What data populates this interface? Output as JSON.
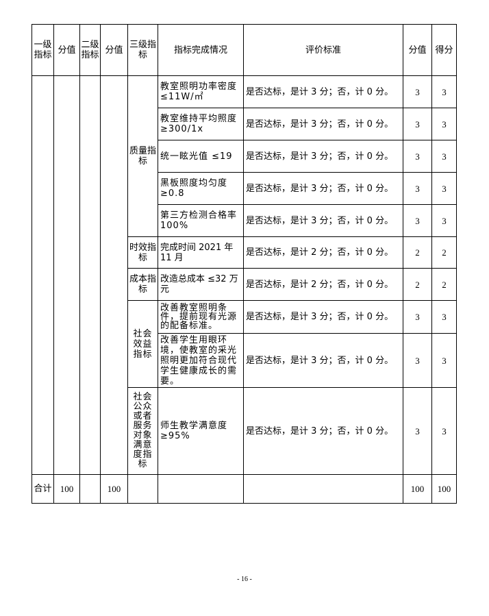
{
  "header": [
    "一级指标",
    "分值",
    "二级指标",
    "分值",
    "三级指标",
    "指标完成情况",
    "评价标准",
    "分值",
    "得分"
  ],
  "groups": [
    "质量指标",
    "时效指标",
    "成本指标",
    "社会效益指标",
    "社会公众或者服务对象满意度指标"
  ],
  "rows": [
    {
      "item": "教室照明功率密度 ≤11W/㎡",
      "criteria": "是否达标，是计 3 分；否，计 0 分。",
      "score": "3",
      "got": "3"
    },
    {
      "item": "教室维持平均照度 ≥300/1x",
      "criteria": "是否达标，是计 3 分；否，计 0 分。",
      "score": "3",
      "got": "3"
    },
    {
      "item": "统一眩光值 ≤19",
      "criteria": "是否达标，是计 3 分；否，计 0 分。",
      "score": "3",
      "got": "3"
    },
    {
      "item": "黑板照度均匀度 ≥0.8",
      "criteria": "是否达标，是计 3 分；否，计 0 分。",
      "score": "3",
      "got": "3"
    },
    {
      "item": "第三方检测合格率 100%",
      "criteria": "是否达标，是计 3 分；否，计 0 分。",
      "score": "3",
      "got": "3"
    },
    {
      "item": "完成时间 2021 年 11 月",
      "criteria": "是否达标，是计 2 分；否，计 0 分。",
      "score": "2",
      "got": "2"
    },
    {
      "item": "改造总成本 ≤32 万元",
      "criteria": "是否达标，是计 2 分；否，计 0 分。",
      "score": "2",
      "got": "2"
    },
    {
      "item": "改善教室照明条件，提前现有光源的配备标准。",
      "criteria": "是否达标，是计 3 分；否，计 0 分。",
      "score": "3",
      "got": "3"
    },
    {
      "item": "改善学生用眼环境，使教室的采光照明更加符合现代学生健康成长的需要。",
      "criteria": "是否达标，是计 3 分；否，计 0 分。",
      "score": "3",
      "got": "3"
    },
    {
      "item": "师生教学满意度 ≥95%",
      "criteria": "是否达标，是计 3 分；否，计 0 分。",
      "score": "3",
      "got": "3"
    }
  ],
  "total": {
    "label": "合计",
    "l1_score": "100",
    "l2_score": "100",
    "score": "100",
    "got": "100"
  },
  "page_number": "- 16 -"
}
